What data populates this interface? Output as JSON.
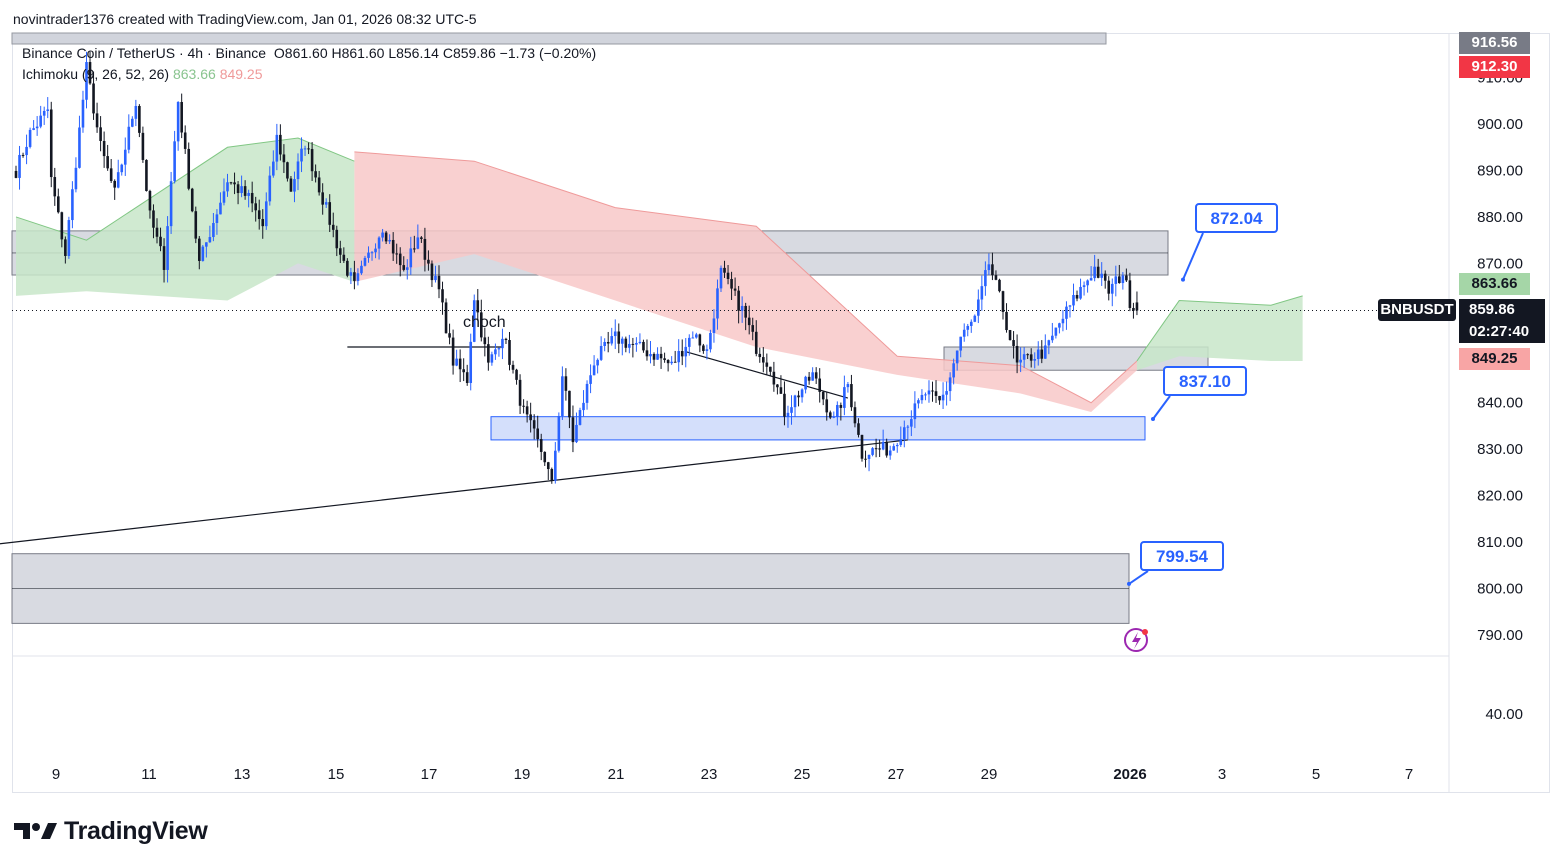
{
  "header": {
    "caption": "novintrader1376 created with TradingView.com, Jan 01, 2026 08:32 UTC-5"
  },
  "legend": {
    "symbol_line": "Binance Coin / TetherUS · 4h · Binance",
    "open": "O861.60",
    "high": "H861.60",
    "low": "L856.14",
    "close": "C859.86",
    "change": "−1.73 (−0.20%)",
    "indicator_name": "Ichimoku (9, 26, 52, 26)",
    "indicator_value_a": "863.66",
    "indicator_value_b": "849.25"
  },
  "price_axis": {
    "ticks": [
      "910.00",
      "900.00",
      "890.00",
      "880.00",
      "870.00",
      "840.00",
      "830.00",
      "820.00",
      "810.00",
      "800.00",
      "790.00",
      "40.00"
    ],
    "tag_high": "916.56",
    "tag_red": "912.30",
    "tag_span_a": "863.66",
    "tag_span_b": "849.25",
    "tag_symbol": "BNBUSDT",
    "tag_last_price": "859.86",
    "tag_countdown": "02:27:40"
  },
  "time_axis": {
    "ticks": [
      "9",
      "11",
      "13",
      "15",
      "17",
      "19",
      "21",
      "23",
      "25",
      "27",
      "29",
      "2026",
      "3",
      "5",
      "7"
    ]
  },
  "annotations": {
    "choch_label": "choch",
    "callout_872": "872.04",
    "callout_837": "837.10",
    "callout_799": "799.54"
  },
  "branding": {
    "logo_text": "TradingView"
  },
  "colors": {
    "bull": "#2962ff",
    "bear": "#131722",
    "kumo_bull": "#c8e6c9",
    "kumo_bear": "#f8c8c8",
    "zone": "#d1d4dc",
    "demand_zone": "#cfdcfb",
    "accent": "#2962ff"
  },
  "chart_data": {
    "type": "candlestick",
    "title": "Binance Coin / TetherUS · 4h · Binance",
    "xlabel": "",
    "ylabel": "",
    "ylim": [
      785,
      918
    ],
    "x_range_days": [
      "Dec 9",
      "Jan 7"
    ],
    "indicator": "Ichimoku (9, 26, 52, 26)",
    "last_price": 859.86,
    "ohlc_last": {
      "open": 861.6,
      "high": 861.6,
      "low": 856.14,
      "close": 859.86
    },
    "pivots": [
      [
        0,
        890
      ],
      [
        4,
        898
      ],
      [
        9,
        903
      ],
      [
        10,
        888
      ],
      [
        14,
        872
      ],
      [
        20,
        912
      ],
      [
        24,
        895
      ],
      [
        28,
        885
      ],
      [
        34,
        905
      ],
      [
        38,
        880
      ],
      [
        42,
        870
      ],
      [
        46,
        905
      ],
      [
        52,
        870
      ],
      [
        60,
        888
      ],
      [
        66,
        884
      ],
      [
        70,
        878
      ],
      [
        74,
        897
      ],
      [
        78,
        886
      ],
      [
        82,
        896
      ],
      [
        92,
        872
      ],
      [
        96,
        865
      ],
      [
        104,
        878
      ],
      [
        110,
        868
      ],
      [
        114,
        876
      ],
      [
        120,
        864
      ],
      [
        124,
        849
      ],
      [
        128,
        845
      ],
      [
        130,
        863
      ],
      [
        134,
        848
      ],
      [
        138,
        855
      ],
      [
        144,
        838
      ],
      [
        150,
        828
      ],
      [
        152,
        822
      ],
      [
        155,
        846
      ],
      [
        158,
        832
      ],
      [
        164,
        849
      ],
      [
        170,
        854
      ],
      [
        176,
        852
      ],
      [
        182,
        850
      ],
      [
        186,
        848
      ],
      [
        192,
        855
      ],
      [
        196,
        851
      ],
      [
        200,
        868
      ],
      [
        206,
        860
      ],
      [
        210,
        852
      ],
      [
        214,
        848
      ],
      [
        218,
        838
      ],
      [
        222,
        842
      ],
      [
        226,
        846
      ],
      [
        232,
        836
      ],
      [
        236,
        844
      ],
      [
        240,
        829
      ],
      [
        244,
        830
      ],
      [
        248,
        830
      ],
      [
        252,
        835
      ],
      [
        258,
        842
      ],
      [
        262,
        840
      ],
      [
        264,
        843
      ],
      [
        268,
        854
      ],
      [
        272,
        858
      ],
      [
        276,
        870
      ],
      [
        280,
        860
      ],
      [
        284,
        848
      ],
      [
        288,
        850
      ],
      [
        292,
        851
      ],
      [
        296,
        857
      ],
      [
        300,
        862
      ],
      [
        306,
        869
      ],
      [
        310,
        864
      ],
      [
        314,
        868
      ],
      [
        316,
        862
      ],
      [
        318,
        860
      ]
    ],
    "kumo": {
      "green_band": [
        [
          0,
          880,
          863
        ],
        [
          20,
          875,
          864
        ],
        [
          60,
          895,
          862
        ],
        [
          80,
          897,
          870
        ],
        [
          96,
          892,
          866
        ]
      ],
      "red_band": [
        [
          96,
          894,
          866
        ],
        [
          130,
          892,
          872
        ],
        [
          170,
          882,
          862
        ],
        [
          210,
          878,
          852
        ],
        [
          250,
          850,
          846
        ],
        [
          285,
          848,
          842
        ],
        [
          305,
          840,
          838
        ],
        [
          318,
          849,
          847
        ]
      ],
      "future_green": [
        [
          318,
          849,
          847
        ],
        [
          330,
          862,
          850
        ],
        [
          356,
          861,
          849
        ],
        [
          365,
          863,
          849
        ]
      ]
    },
    "zones": [
      {
        "name": "supply-zone",
        "from": 867.5,
        "to": 877,
        "label": "872.04"
      },
      {
        "name": "demand-zone",
        "from": 832,
        "to": 837,
        "label": "837.10"
      },
      {
        "name": "low-zone",
        "from": 792.5,
        "to": 807.5,
        "label": "799.54"
      },
      {
        "name": "small-box",
        "from": 847,
        "to": 852
      }
    ],
    "trendlines": [
      {
        "name": "support-trendline",
        "from": [
          -12,
          809
        ],
        "to": [
          253,
          832
        ]
      },
      {
        "name": "falling-trendline",
        "from": [
          190,
          851
        ],
        "to": [
          236,
          841
        ]
      },
      {
        "name": "choch-line",
        "from": [
          94,
          852
        ],
        "to": [
          138,
          852
        ]
      }
    ]
  }
}
